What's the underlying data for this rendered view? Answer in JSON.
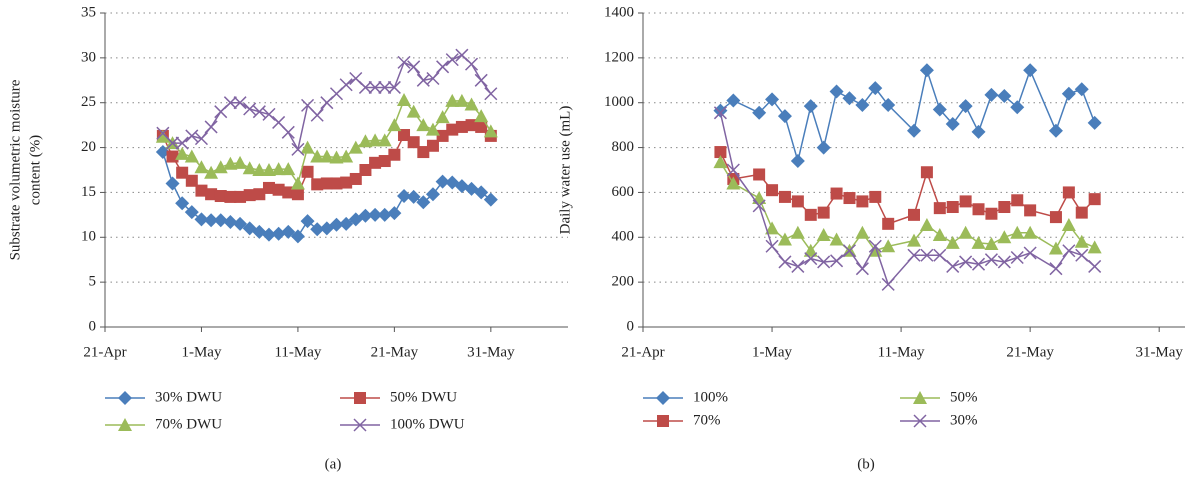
{
  "chart_data": [
    {
      "type": "line",
      "caption": "(a)",
      "ylabel": [
        "Substrate volumetric moisture",
        "content (%)"
      ],
      "xlim": [
        "21-Apr",
        "8-Jun"
      ],
      "xticks": [
        "21-Apr",
        "1-May",
        "11-May",
        "21-May",
        "31-May"
      ],
      "ylim": [
        0,
        35
      ],
      "yticks": [
        0,
        5,
        10,
        15,
        20,
        25,
        30,
        35
      ],
      "grid": true,
      "legend_order": "row",
      "x": [
        "27-Apr",
        "28-Apr",
        "29-Apr",
        "30-Apr",
        "1-May",
        "2-May",
        "3-May",
        "4-May",
        "5-May",
        "6-May",
        "7-May",
        "8-May",
        "9-May",
        "10-May",
        "11-May",
        "12-May",
        "13-May",
        "14-May",
        "15-May",
        "16-May",
        "17-May",
        "18-May",
        "19-May",
        "20-May",
        "21-May",
        "22-May",
        "23-May",
        "24-May",
        "25-May",
        "26-May",
        "27-May",
        "28-May",
        "29-May",
        "30-May",
        "31-May"
      ],
      "series": [
        {
          "name": "30% DWU",
          "color": "#4a7ebb",
          "marker": "diamond",
          "values": [
            19.5,
            16,
            13.8,
            12.8,
            12,
            11.9,
            11.9,
            11.7,
            11.5,
            11,
            10.6,
            10.3,
            10.4,
            10.6,
            10.1,
            11.8,
            10.9,
            11,
            11.4,
            11.5,
            12,
            12.4,
            12.5,
            12.5,
            12.7,
            14.6,
            14.5,
            13.9,
            14.8,
            16.2,
            16.1,
            15.7,
            15.4,
            15,
            14.2
          ]
        },
        {
          "name": "50% DWU",
          "color": "#be4b48",
          "marker": "square",
          "values": [
            21.3,
            19,
            17.2,
            16.3,
            15.2,
            14.8,
            14.6,
            14.5,
            14.5,
            14.7,
            14.8,
            15.5,
            15.3,
            15,
            14.8,
            17.3,
            15.9,
            16,
            16,
            16.1,
            16.5,
            17.5,
            18.3,
            18.5,
            19.2,
            21.4,
            20.6,
            19.5,
            20.2,
            21.3,
            22,
            22.3,
            22.5,
            22.3,
            21.3
          ]
        },
        {
          "name": "70% DWU",
          "color": "#9bbb59",
          "marker": "triangle",
          "values": [
            21.2,
            20.5,
            19.3,
            19,
            17.8,
            17.2,
            17.8,
            18.2,
            18.3,
            17.7,
            17.5,
            17.5,
            17.6,
            17.6,
            16,
            20,
            19,
            19,
            18.9,
            19,
            20,
            20.7,
            20.8,
            20.8,
            22.5,
            25.3,
            24,
            22.5,
            22,
            23.4,
            25.2,
            25.2,
            24.8,
            23.5,
            21.8
          ]
        },
        {
          "name": "100% DWU",
          "color": "#8064a2",
          "marker": "x",
          "values": [
            21.6,
            20.5,
            20.5,
            21.3,
            21,
            22.3,
            24,
            25,
            25,
            24.3,
            24,
            23.7,
            22.8,
            21.7,
            19.8,
            24.7,
            23.6,
            25,
            26,
            27,
            27.7,
            26.7,
            26.7,
            26.7,
            26.7,
            29.5,
            29,
            27.5,
            27.7,
            29,
            29.8,
            30.3,
            29.3,
            27.5,
            26
          ]
        }
      ]
    },
    {
      "type": "line",
      "caption": "(b)",
      "ylabel": [
        "Daily water use (mL)"
      ],
      "xlim": [
        "21-Apr",
        "2-Jun"
      ],
      "xticks": [
        "21-Apr",
        "1-May",
        "11-May",
        "21-May",
        "31-May"
      ],
      "ylim": [
        0,
        1400
      ],
      "yticks": [
        0,
        200,
        400,
        600,
        800,
        1000,
        1200,
        1400
      ],
      "grid": true,
      "legend_order": "column",
      "x": [
        "27-Apr",
        "28-Apr",
        "30-Apr",
        "1-May",
        "2-May",
        "3-May",
        "4-May",
        "5-May",
        "6-May",
        "7-May",
        "8-May",
        "9-May",
        "10-May",
        "12-May",
        "13-May",
        "14-May",
        "15-May",
        "16-May",
        "17-May",
        "18-May",
        "19-May",
        "20-May",
        "21-May",
        "23-May",
        "24-May",
        "25-May",
        "26-May"
      ],
      "series": [
        {
          "name": "100%",
          "color": "#4a7ebb",
          "marker": "diamond",
          "values": [
            965,
            1010,
            955,
            1015,
            940,
            740,
            985,
            800,
            1050,
            1020,
            990,
            1065,
            990,
            875,
            1145,
            970,
            905,
            985,
            870,
            1035,
            1030,
            980,
            1145,
            875,
            1040,
            1060,
            910
          ]
        },
        {
          "name": "70%",
          "color": "#be4b48",
          "marker": "square",
          "values": [
            780,
            660,
            680,
            610,
            580,
            560,
            500,
            510,
            595,
            575,
            560,
            580,
            460,
            500,
            690,
            530,
            535,
            560,
            525,
            505,
            535,
            565,
            520,
            490,
            600,
            510,
            570
          ]
        },
        {
          "name": "50%",
          "color": "#9bbb59",
          "marker": "triangle",
          "values": [
            735,
            640,
            575,
            440,
            390,
            420,
            340,
            410,
            390,
            340,
            420,
            340,
            360,
            385,
            455,
            410,
            375,
            420,
            375,
            370,
            400,
            420,
            420,
            350,
            455,
            380,
            355
          ]
        },
        {
          "name": "30%",
          "color": "#8064a2",
          "marker": "x",
          "values": [
            955,
            700,
            540,
            360,
            290,
            270,
            305,
            290,
            295,
            340,
            260,
            360,
            190,
            320,
            320,
            320,
            270,
            290,
            280,
            300,
            290,
            310,
            330,
            260,
            340,
            320,
            270
          ]
        }
      ]
    }
  ]
}
